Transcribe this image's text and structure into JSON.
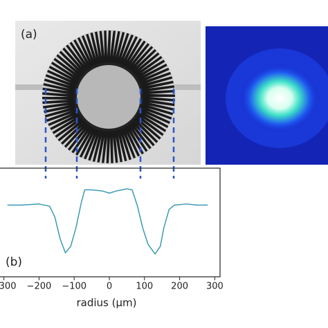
{
  "chart_data": {
    "type": "line",
    "panel_a_label": "(a)",
    "panel_b_label": "(b)",
    "x_label": "radius (µm)",
    "xlim": [
      -315,
      315
    ],
    "ylim": [
      0,
      1
    ],
    "xticks": [
      {
        "value": -300,
        "label": "−300"
      },
      {
        "value": -200,
        "label": "−200"
      },
      {
        "value": -100,
        "label": "−100"
      },
      0,
      100,
      200,
      300
    ],
    "x": [
      -290,
      -250,
      -200,
      -170,
      -155,
      -140,
      -125,
      -110,
      -95,
      -80,
      -70,
      -50,
      -20,
      0,
      20,
      50,
      65,
      80,
      95,
      110,
      130,
      145,
      155,
      170,
      185,
      220,
      250,
      280
    ],
    "series": [
      {
        "color": "#3b9ab4",
        "values": [
          0.66,
          0.66,
          0.67,
          0.65,
          0.55,
          0.35,
          0.22,
          0.28,
          0.45,
          0.68,
          0.8,
          0.8,
          0.79,
          0.77,
          0.79,
          0.81,
          0.8,
          0.65,
          0.45,
          0.3,
          0.21,
          0.28,
          0.45,
          0.62,
          0.66,
          0.67,
          0.66,
          0.66
        ]
      }
    ]
  }
}
